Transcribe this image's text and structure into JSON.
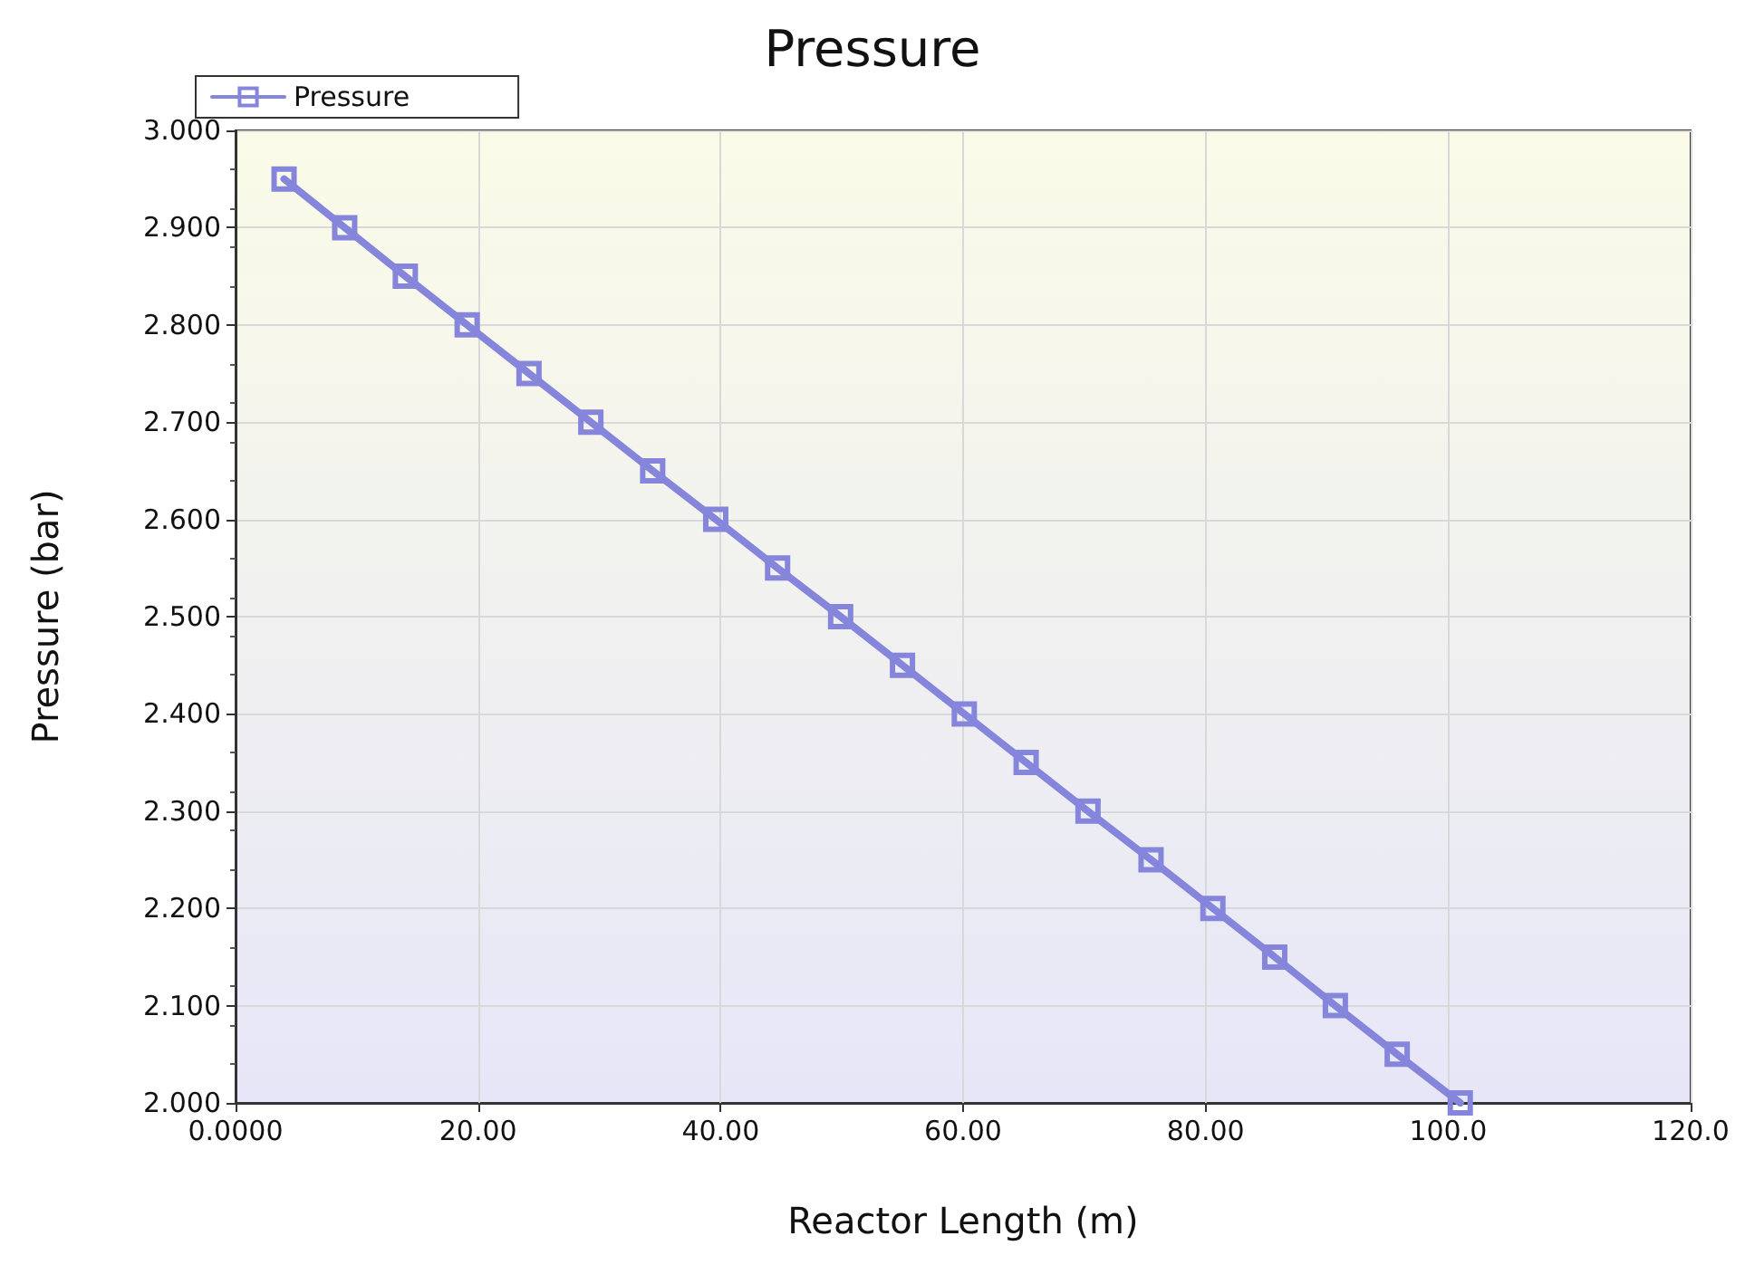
{
  "chart_data": {
    "type": "line",
    "title": "Pressure",
    "xlabel": "Reactor Length (m)",
    "ylabel": "Pressure (bar)",
    "series": [
      {
        "name": "Pressure",
        "color": "#8585dc",
        "x": [
          4.0,
          9.0,
          14.0,
          19.1,
          24.2,
          29.3,
          34.4,
          39.6,
          44.7,
          49.9,
          55.0,
          60.1,
          65.2,
          70.3,
          75.5,
          80.6,
          85.7,
          90.7,
          95.8,
          101.0
        ],
        "values": [
          2.95,
          2.9,
          2.85,
          2.8,
          2.75,
          2.7,
          2.65,
          2.6,
          2.55,
          2.5,
          2.45,
          2.4,
          2.35,
          2.3,
          2.25,
          2.2,
          2.15,
          2.1,
          2.05,
          2.0
        ]
      }
    ],
    "xlim": [
      0,
      120
    ],
    "xticks": [
      {
        "value": 0,
        "label": "0.0000"
      },
      {
        "value": 20,
        "label": "20.00"
      },
      {
        "value": 40,
        "label": "40.00"
      },
      {
        "value": 60,
        "label": "60.00"
      },
      {
        "value": 80,
        "label": "80.00"
      },
      {
        "value": 100,
        "label": "100.0"
      },
      {
        "value": 120,
        "label": "120.0"
      }
    ],
    "ylim": [
      2,
      3
    ],
    "yticks": [
      {
        "value": 2,
        "label": "2.000"
      },
      {
        "value": 2.1,
        "label": "2.100"
      },
      {
        "value": 2.2,
        "label": "2.200"
      },
      {
        "value": 2.3,
        "label": "2.300"
      },
      {
        "value": 2.4,
        "label": "2.400"
      },
      {
        "value": 2.5,
        "label": "2.500"
      },
      {
        "value": 2.6,
        "label": "2.600"
      },
      {
        "value": 2.7,
        "label": "2.700"
      },
      {
        "value": 2.8,
        "label": "2.800"
      },
      {
        "value": 2.9,
        "label": "2.900"
      },
      {
        "value": 3,
        "label": "3.000"
      }
    ],
    "grid": true,
    "legend": "top left",
    "marker": "square",
    "line_style": "solid"
  }
}
